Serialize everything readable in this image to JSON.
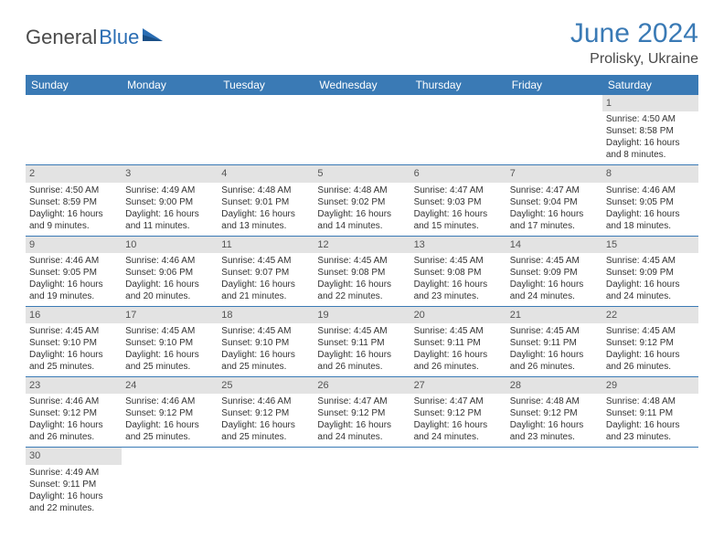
{
  "logo": {
    "part1": "General",
    "part2": "Blue"
  },
  "title": "June 2024",
  "location": "Prolisky, Ukraine",
  "colors": {
    "header_bg": "#3a7ab5",
    "header_text": "#ffffff",
    "daynum_bg": "#e3e3e3",
    "row_divider": "#3a7ab5",
    "title_color": "#3a7ab5",
    "logo_gray": "#4a4a4a",
    "logo_blue": "#2a6db3",
    "body_text": "#333333"
  },
  "day_headers": [
    "Sunday",
    "Monday",
    "Tuesday",
    "Wednesday",
    "Thursday",
    "Friday",
    "Saturday"
  ],
  "weeks": [
    [
      {
        "num": "",
        "sunrise": "",
        "sunset": "",
        "daylight": ""
      },
      {
        "num": "",
        "sunrise": "",
        "sunset": "",
        "daylight": ""
      },
      {
        "num": "",
        "sunrise": "",
        "sunset": "",
        "daylight": ""
      },
      {
        "num": "",
        "sunrise": "",
        "sunset": "",
        "daylight": ""
      },
      {
        "num": "",
        "sunrise": "",
        "sunset": "",
        "daylight": ""
      },
      {
        "num": "",
        "sunrise": "",
        "sunset": "",
        "daylight": ""
      },
      {
        "num": "1",
        "sunrise": "Sunrise: 4:50 AM",
        "sunset": "Sunset: 8:58 PM",
        "daylight": "Daylight: 16 hours and 8 minutes."
      }
    ],
    [
      {
        "num": "2",
        "sunrise": "Sunrise: 4:50 AM",
        "sunset": "Sunset: 8:59 PM",
        "daylight": "Daylight: 16 hours and 9 minutes."
      },
      {
        "num": "3",
        "sunrise": "Sunrise: 4:49 AM",
        "sunset": "Sunset: 9:00 PM",
        "daylight": "Daylight: 16 hours and 11 minutes."
      },
      {
        "num": "4",
        "sunrise": "Sunrise: 4:48 AM",
        "sunset": "Sunset: 9:01 PM",
        "daylight": "Daylight: 16 hours and 13 minutes."
      },
      {
        "num": "5",
        "sunrise": "Sunrise: 4:48 AM",
        "sunset": "Sunset: 9:02 PM",
        "daylight": "Daylight: 16 hours and 14 minutes."
      },
      {
        "num": "6",
        "sunrise": "Sunrise: 4:47 AM",
        "sunset": "Sunset: 9:03 PM",
        "daylight": "Daylight: 16 hours and 15 minutes."
      },
      {
        "num": "7",
        "sunrise": "Sunrise: 4:47 AM",
        "sunset": "Sunset: 9:04 PM",
        "daylight": "Daylight: 16 hours and 17 minutes."
      },
      {
        "num": "8",
        "sunrise": "Sunrise: 4:46 AM",
        "sunset": "Sunset: 9:05 PM",
        "daylight": "Daylight: 16 hours and 18 minutes."
      }
    ],
    [
      {
        "num": "9",
        "sunrise": "Sunrise: 4:46 AM",
        "sunset": "Sunset: 9:05 PM",
        "daylight": "Daylight: 16 hours and 19 minutes."
      },
      {
        "num": "10",
        "sunrise": "Sunrise: 4:46 AM",
        "sunset": "Sunset: 9:06 PM",
        "daylight": "Daylight: 16 hours and 20 minutes."
      },
      {
        "num": "11",
        "sunrise": "Sunrise: 4:45 AM",
        "sunset": "Sunset: 9:07 PM",
        "daylight": "Daylight: 16 hours and 21 minutes."
      },
      {
        "num": "12",
        "sunrise": "Sunrise: 4:45 AM",
        "sunset": "Sunset: 9:08 PM",
        "daylight": "Daylight: 16 hours and 22 minutes."
      },
      {
        "num": "13",
        "sunrise": "Sunrise: 4:45 AM",
        "sunset": "Sunset: 9:08 PM",
        "daylight": "Daylight: 16 hours and 23 minutes."
      },
      {
        "num": "14",
        "sunrise": "Sunrise: 4:45 AM",
        "sunset": "Sunset: 9:09 PM",
        "daylight": "Daylight: 16 hours and 24 minutes."
      },
      {
        "num": "15",
        "sunrise": "Sunrise: 4:45 AM",
        "sunset": "Sunset: 9:09 PM",
        "daylight": "Daylight: 16 hours and 24 minutes."
      }
    ],
    [
      {
        "num": "16",
        "sunrise": "Sunrise: 4:45 AM",
        "sunset": "Sunset: 9:10 PM",
        "daylight": "Daylight: 16 hours and 25 minutes."
      },
      {
        "num": "17",
        "sunrise": "Sunrise: 4:45 AM",
        "sunset": "Sunset: 9:10 PM",
        "daylight": "Daylight: 16 hours and 25 minutes."
      },
      {
        "num": "18",
        "sunrise": "Sunrise: 4:45 AM",
        "sunset": "Sunset: 9:10 PM",
        "daylight": "Daylight: 16 hours and 25 minutes."
      },
      {
        "num": "19",
        "sunrise": "Sunrise: 4:45 AM",
        "sunset": "Sunset: 9:11 PM",
        "daylight": "Daylight: 16 hours and 26 minutes."
      },
      {
        "num": "20",
        "sunrise": "Sunrise: 4:45 AM",
        "sunset": "Sunset: 9:11 PM",
        "daylight": "Daylight: 16 hours and 26 minutes."
      },
      {
        "num": "21",
        "sunrise": "Sunrise: 4:45 AM",
        "sunset": "Sunset: 9:11 PM",
        "daylight": "Daylight: 16 hours and 26 minutes."
      },
      {
        "num": "22",
        "sunrise": "Sunrise: 4:45 AM",
        "sunset": "Sunset: 9:12 PM",
        "daylight": "Daylight: 16 hours and 26 minutes."
      }
    ],
    [
      {
        "num": "23",
        "sunrise": "Sunrise: 4:46 AM",
        "sunset": "Sunset: 9:12 PM",
        "daylight": "Daylight: 16 hours and 26 minutes."
      },
      {
        "num": "24",
        "sunrise": "Sunrise: 4:46 AM",
        "sunset": "Sunset: 9:12 PM",
        "daylight": "Daylight: 16 hours and 25 minutes."
      },
      {
        "num": "25",
        "sunrise": "Sunrise: 4:46 AM",
        "sunset": "Sunset: 9:12 PM",
        "daylight": "Daylight: 16 hours and 25 minutes."
      },
      {
        "num": "26",
        "sunrise": "Sunrise: 4:47 AM",
        "sunset": "Sunset: 9:12 PM",
        "daylight": "Daylight: 16 hours and 24 minutes."
      },
      {
        "num": "27",
        "sunrise": "Sunrise: 4:47 AM",
        "sunset": "Sunset: 9:12 PM",
        "daylight": "Daylight: 16 hours and 24 minutes."
      },
      {
        "num": "28",
        "sunrise": "Sunrise: 4:48 AM",
        "sunset": "Sunset: 9:12 PM",
        "daylight": "Daylight: 16 hours and 23 minutes."
      },
      {
        "num": "29",
        "sunrise": "Sunrise: 4:48 AM",
        "sunset": "Sunset: 9:11 PM",
        "daylight": "Daylight: 16 hours and 23 minutes."
      }
    ],
    [
      {
        "num": "30",
        "sunrise": "Sunrise: 4:49 AM",
        "sunset": "Sunset: 9:11 PM",
        "daylight": "Daylight: 16 hours and 22 minutes."
      },
      {
        "num": "",
        "sunrise": "",
        "sunset": "",
        "daylight": ""
      },
      {
        "num": "",
        "sunrise": "",
        "sunset": "",
        "daylight": ""
      },
      {
        "num": "",
        "sunrise": "",
        "sunset": "",
        "daylight": ""
      },
      {
        "num": "",
        "sunrise": "",
        "sunset": "",
        "daylight": ""
      },
      {
        "num": "",
        "sunrise": "",
        "sunset": "",
        "daylight": ""
      },
      {
        "num": "",
        "sunrise": "",
        "sunset": "",
        "daylight": ""
      }
    ]
  ]
}
